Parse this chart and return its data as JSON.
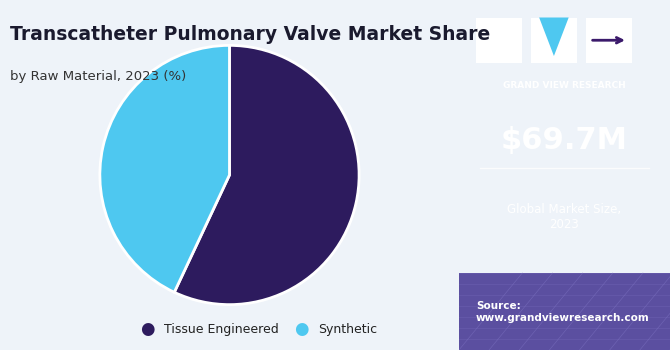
{
  "title_main": "Transcatheter Pulmonary Valve Market Share",
  "title_sub": "by Raw Material, 2023 (%)",
  "slices": [
    57,
    43
  ],
  "labels": [
    "Tissue Engineered",
    "Synthetic"
  ],
  "colors": [
    "#2d1b5e",
    "#4ec8f0"
  ],
  "start_angle": 90,
  "left_bg": "#eef3f9",
  "right_bg": "#3b1a6b",
  "right_bg_bottom": "#5b4fa0",
  "market_size": "$69.7M",
  "market_label": "Global Market Size,\n2023",
  "source_label": "Source:\nwww.grandviewresearch.com",
  "legend_dot_size": 10,
  "gvr_text": "GRAND VIEW RESEARCH"
}
